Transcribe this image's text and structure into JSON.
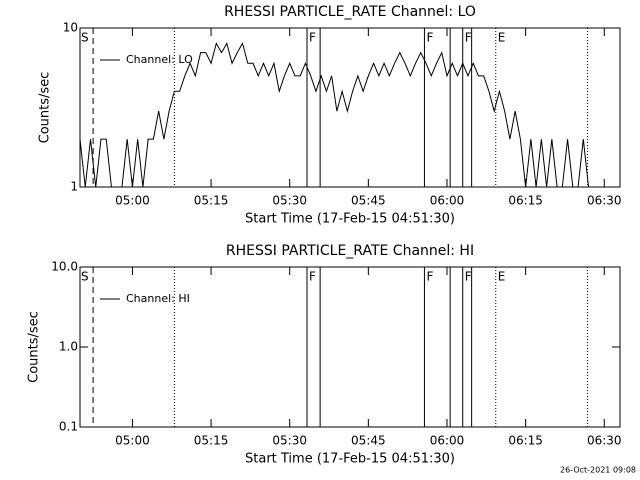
{
  "chart_data": [
    {
      "type": "line",
      "title": "RHESSI PARTICLE_RATE Channel: LO",
      "xlabel": "Start Time (17-Feb-15 04:51:30)",
      "ylabel": "Counts/sec",
      "log_y": true,
      "ylim": [
        1,
        10
      ],
      "yticks": [
        1,
        10
      ],
      "xlim": [
        290,
        393
      ],
      "xticks": [
        {
          "value": 300,
          "label": "05:00"
        },
        {
          "value": 315,
          "label": "05:15"
        },
        {
          "value": 330,
          "label": "05:30"
        },
        {
          "value": 345,
          "label": "05:45"
        },
        {
          "value": 360,
          "label": "06:00"
        },
        {
          "value": 375,
          "label": "06:15"
        },
        {
          "value": 390,
          "label": "06:30"
        }
      ],
      "legend": "upper left",
      "series": [
        {
          "name": "Channel: LO",
          "color": "#000000",
          "x": [
            290,
            291,
            292,
            293,
            294,
            295,
            296,
            297,
            298,
            299,
            300,
            301,
            302,
            303,
            304,
            305,
            306,
            307,
            308,
            309,
            310,
            311,
            312,
            313,
            314,
            315,
            316,
            317,
            318,
            319,
            320,
            321,
            322,
            323,
            324,
            325,
            326,
            327,
            328,
            329,
            330,
            331,
            332,
            333,
            334,
            335,
            336,
            337,
            338,
            339,
            340,
            341,
            342,
            343,
            344,
            345,
            346,
            347,
            348,
            349,
            350,
            351,
            352,
            353,
            354,
            355,
            356,
            357,
            358,
            359,
            360,
            361,
            362,
            363,
            364,
            365,
            366,
            367,
            368,
            369,
            370,
            371,
            372,
            373,
            374,
            375,
            376,
            377,
            378,
            379,
            380,
            381,
            382,
            383,
            384,
            385,
            386,
            387
          ],
          "values": [
            2,
            1,
            2,
            1,
            2,
            2,
            1,
            1,
            1,
            2,
            1,
            2,
            1,
            2,
            2,
            3,
            2,
            3,
            4,
            4,
            5,
            6,
            5,
            7,
            7,
            6,
            8,
            7,
            8,
            6,
            7,
            8,
            6,
            6,
            5,
            6,
            5,
            6,
            4,
            5,
            6,
            5,
            5,
            6,
            5,
            4,
            5,
            4,
            5,
            3,
            4,
            3,
            4,
            5,
            4,
            5,
            6,
            5,
            6,
            5,
            6,
            7,
            6,
            5,
            6,
            7,
            6,
            5,
            6,
            7,
            5,
            6,
            5,
            6,
            5,
            6,
            5,
            5,
            4,
            3,
            4,
            3,
            2,
            3,
            2,
            1,
            2,
            1,
            2,
            1,
            2,
            1,
            1,
            2,
            1,
            1,
            2,
            1
          ]
        }
      ],
      "events": [
        {
          "x": 292.5,
          "style": "dashed",
          "label": "S"
        },
        {
          "x": 308,
          "style": "dotted"
        },
        {
          "x": 333.3,
          "style": "solid",
          "label": "F"
        },
        {
          "x": 335.8,
          "style": "solid"
        },
        {
          "x": 355.7,
          "style": "solid",
          "label": "F"
        },
        {
          "x": 360.6,
          "style": "solid"
        },
        {
          "x": 363,
          "style": "solid",
          "label": "F"
        },
        {
          "x": 364.7,
          "style": "solid"
        },
        {
          "x": 369.3,
          "style": "dotted",
          "label": "E"
        },
        {
          "x": 386.8,
          "style": "dotted"
        }
      ]
    },
    {
      "type": "line",
      "title": "RHESSI PARTICLE_RATE Channel: HI",
      "xlabel": "Start Time (17-Feb-15 04:51:30)",
      "ylabel": "Counts/sec",
      "log_y": true,
      "ylim": [
        0.1,
        10
      ],
      "yticks": [
        0.1,
        {
          "value": 1,
          "label": "1.0"
        },
        {
          "value": 10,
          "label": "10.0"
        }
      ],
      "xlim": [
        290,
        393
      ],
      "xticks": [
        {
          "value": 300,
          "label": "05:00"
        },
        {
          "value": 315,
          "label": "05:15"
        },
        {
          "value": 330,
          "label": "05:30"
        },
        {
          "value": 345,
          "label": "05:45"
        },
        {
          "value": 360,
          "label": "06:00"
        },
        {
          "value": 375,
          "label": "06:15"
        },
        {
          "value": 390,
          "label": "06:30"
        }
      ],
      "legend": "upper left",
      "series": [
        {
          "name": "Channel: HI",
          "color": "#000000",
          "x": [],
          "values": []
        }
      ],
      "events": [
        {
          "x": 292.5,
          "style": "dashed",
          "label": "S"
        },
        {
          "x": 308,
          "style": "dotted"
        },
        {
          "x": 333.3,
          "style": "solid",
          "label": "F"
        },
        {
          "x": 335.8,
          "style": "solid"
        },
        {
          "x": 355.7,
          "style": "solid",
          "label": "F"
        },
        {
          "x": 360.6,
          "style": "solid"
        },
        {
          "x": 363,
          "style": "solid",
          "label": "F"
        },
        {
          "x": 364.7,
          "style": "solid"
        },
        {
          "x": 369.3,
          "style": "dotted",
          "label": "E"
        },
        {
          "x": 386.8,
          "style": "dotted"
        }
      ]
    }
  ],
  "footer": "26-Oct-2021 09:08"
}
